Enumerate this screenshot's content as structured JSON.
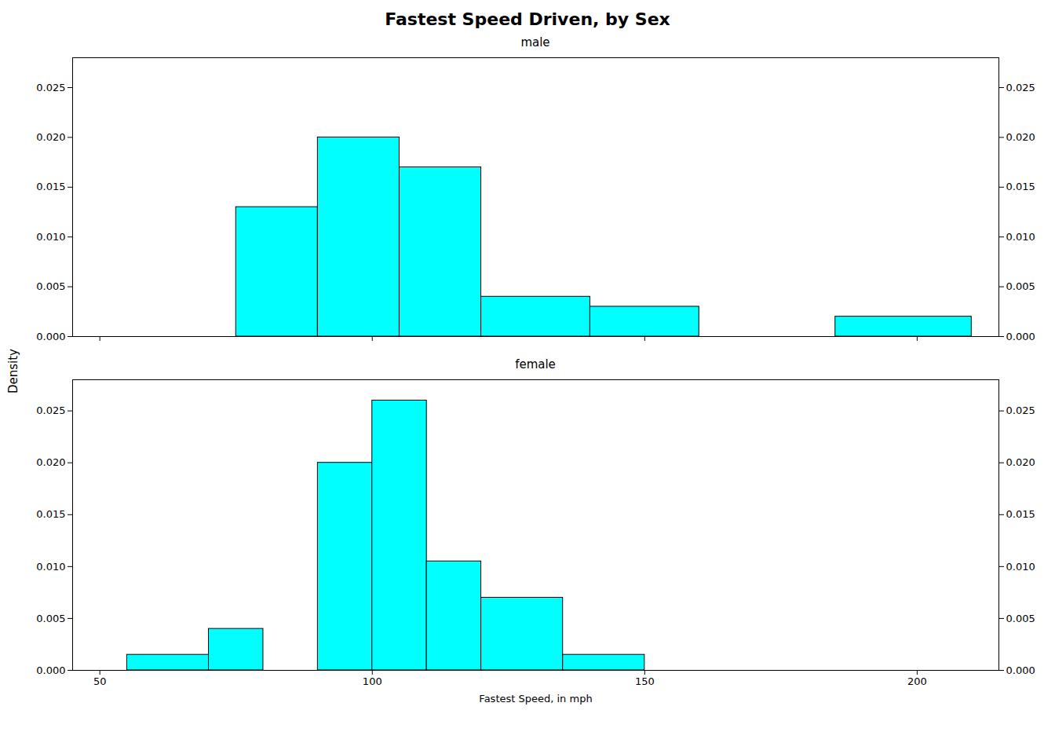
{
  "chart_data": {
    "type": "histogram",
    "title": "Fastest Speed Driven, by Sex",
    "xlabel": "Fastest Speed, in mph",
    "ylabel": "Density",
    "color": "#00FFFF",
    "xlim": [
      45,
      215
    ],
    "xticks": [
      50,
      100,
      150,
      200
    ],
    "ylim": [
      0,
      0.028
    ],
    "yticks": [
      {
        "value": 0,
        "label": "0.000"
      },
      0.005,
      {
        "value": 0.01,
        "label": "0.010"
      },
      0.015,
      {
        "value": 0.02,
        "label": "0.020"
      },
      0.025
    ],
    "panels": [
      {
        "title": "male",
        "bins": [
          55,
          75,
          90,
          105,
          120,
          140,
          160,
          185,
          210
        ],
        "values": [
          0.0,
          0.013,
          0.02,
          0.017,
          0.004,
          0.003,
          0.0,
          0.002
        ]
      },
      {
        "title": "female",
        "bins": [
          55,
          70,
          80,
          90,
          100,
          110,
          120,
          135,
          150
        ],
        "values": [
          0.0015,
          0.004,
          0.0,
          0.02,
          0.026,
          0.0105,
          0.007,
          0.0015
        ]
      }
    ]
  }
}
